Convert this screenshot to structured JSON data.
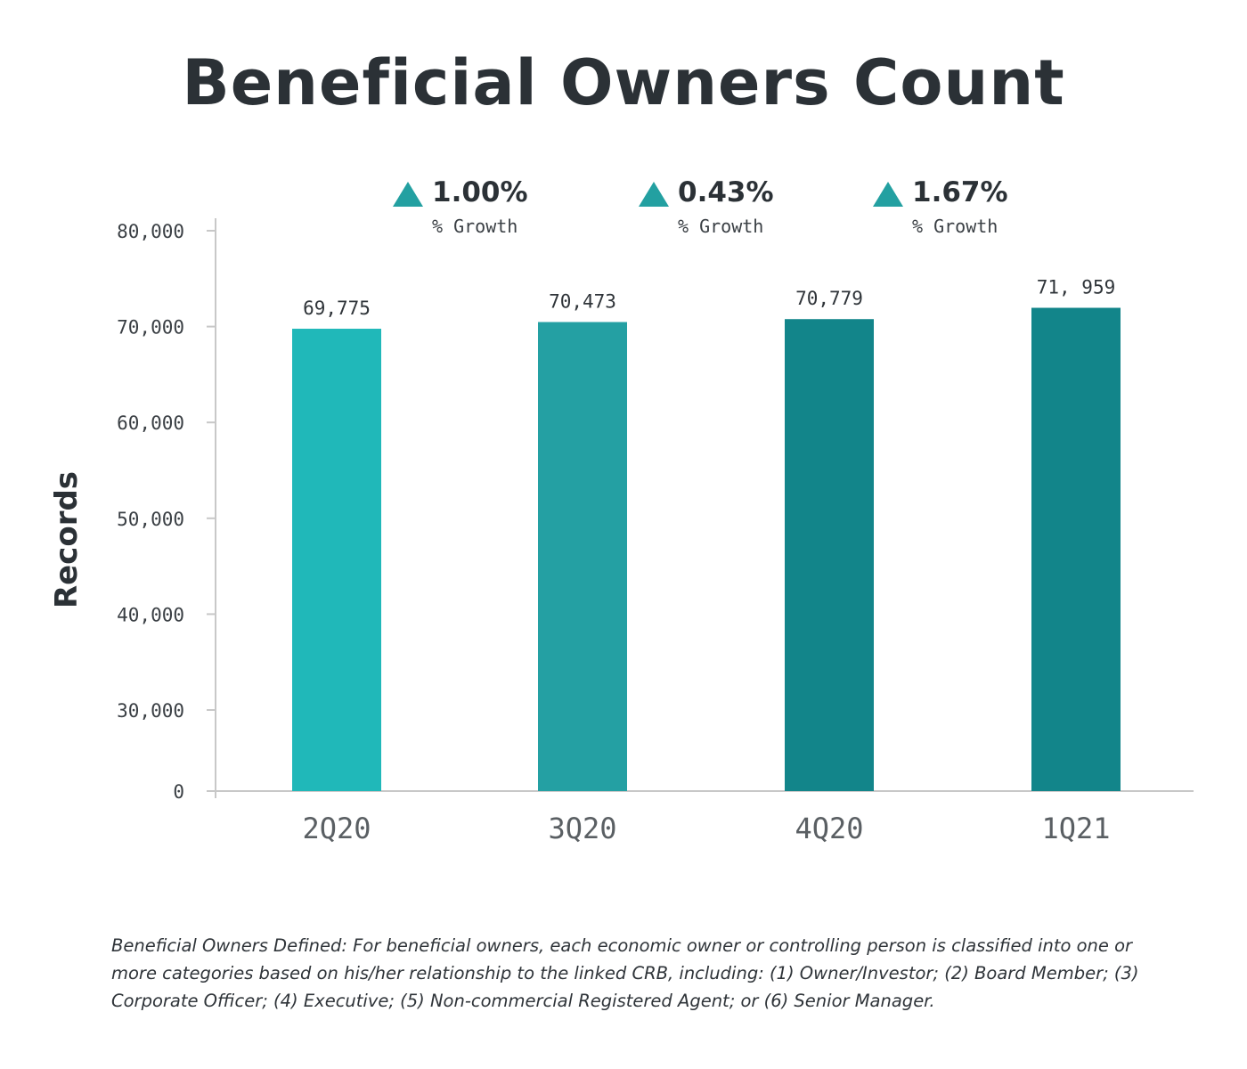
{
  "chart_data": {
    "type": "bar",
    "title": "Beneficial Owners Count",
    "ylabel": "Records",
    "xlabel": "",
    "categories": [
      "2Q20",
      "3Q20",
      "4Q20",
      "1Q21"
    ],
    "values": [
      69775,
      70473,
      70779,
      71959
    ],
    "data_labels": [
      "69,775",
      "70,473",
      "70,779",
      "71, 959"
    ],
    "bar_colors": [
      "#20b8b9",
      "#24a0a3",
      "#12858a",
      "#12858a"
    ],
    "y_ticks": [
      {
        "value": 0,
        "label": "0"
      },
      {
        "value": 30000,
        "label": "30,000"
      },
      {
        "value": 40000,
        "label": "40,000"
      },
      {
        "value": 50000,
        "label": "50,000"
      },
      {
        "value": 60000,
        "label": "60,000"
      },
      {
        "value": 70000,
        "label": "70,000"
      },
      {
        "value": 80000,
        "label": "80,000"
      }
    ],
    "axis_break": {
      "from": 0,
      "to": 30000
    },
    "ylim": [
      0,
      80000
    ],
    "grid": false,
    "legend": "none",
    "growth_annotations": [
      {
        "value": "1.00%",
        "label": "% Growth",
        "icon": "triangle-up-icon"
      },
      {
        "value": "0.43%",
        "label": "% Growth",
        "icon": "triangle-up-icon"
      },
      {
        "value": "1.67%",
        "label": "% Growth",
        "icon": "triangle-up-icon"
      }
    ],
    "growth_color": "#23a0a1"
  },
  "footnote": "Beneficial Owners Defined: For beneficial owners, each economic owner or controlling person is classified into one or more categories based on his/her relationship to the linked CRB, including: (1) Owner/Investor; (2) Board Member; (3) Corporate Officer; (4) Executive; (5) Non-commercial Registered Agent; or (6) Senior Manager."
}
